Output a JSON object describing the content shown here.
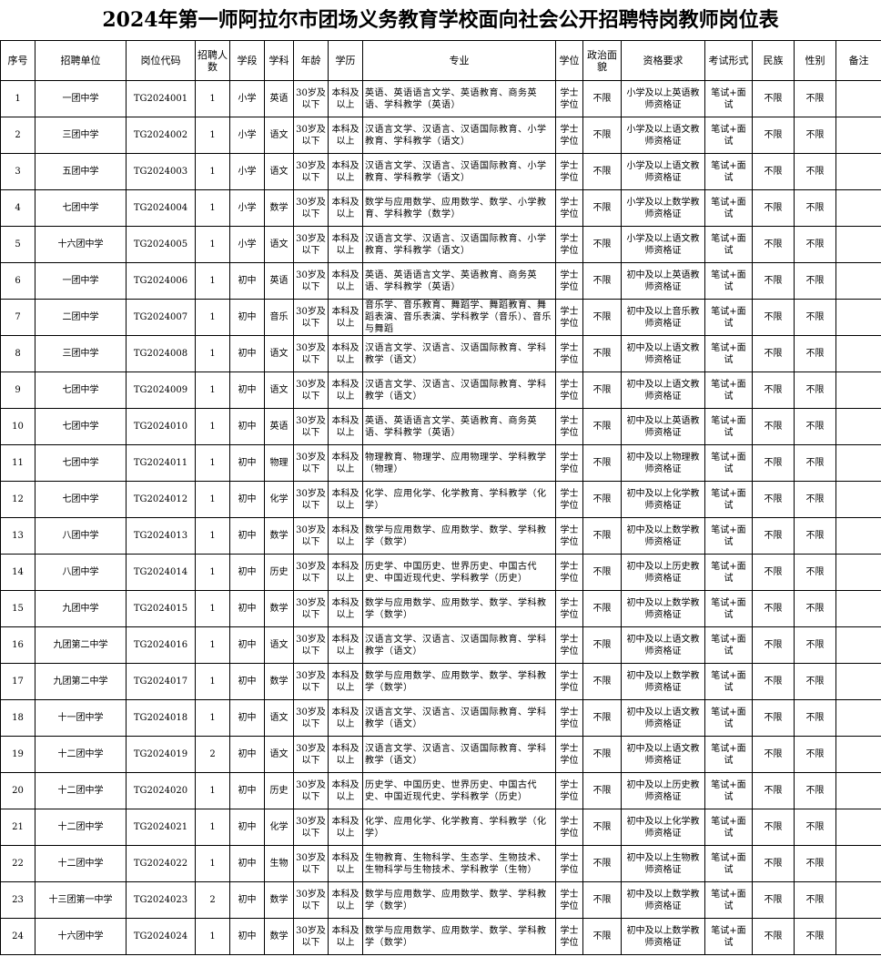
{
  "header": {
    "title": "2024年第一师阿拉尔市团场义务教育学校面向社会公开招聘特岗教师岗位表"
  },
  "table": {
    "columns": [
      "序号",
      "招聘单位",
      "岗位代码",
      "招聘人数",
      "学段",
      "学科",
      "年龄",
      "学历",
      "专业",
      "学位",
      "政治面貌",
      "资格要求",
      "考试形式",
      "民族",
      "性别",
      "备注"
    ],
    "rows": [
      [
        "1",
        "一团中学",
        "TG2024001",
        "1",
        "小学",
        "英语",
        "30岁及以下",
        "本科及以上",
        "英语、英语语言文学、英语教育、商务英语、学科教学（英语）",
        "学士学位",
        "不限",
        "小学及以上英语教师资格证",
        "笔试+面试",
        "不限",
        "不限"
      ],
      [
        "2",
        "三团中学",
        "TG2024002",
        "1",
        "小学",
        "语文",
        "30岁及以下",
        "本科及以上",
        "汉语言文学、汉语言、汉语国际教育、小学教育、学科教学（语文）",
        "学士学位",
        "不限",
        "小学及以上语文教师资格证",
        "笔试+面试",
        "不限",
        "不限"
      ],
      [
        "3",
        "五团中学",
        "TG2024003",
        "1",
        "小学",
        "语文",
        "30岁及以下",
        "本科及以上",
        "汉语言文学、汉语言、汉语国际教育、小学教育、学科教学（语文）",
        "学士学位",
        "不限",
        "小学及以上语文教师资格证",
        "笔试+面试",
        "不限",
        "不限"
      ],
      [
        "4",
        "七团中学",
        "TG2024004",
        "1",
        "小学",
        "数学",
        "30岁及以下",
        "本科及以上",
        "数学与应用数学、应用数学、数学、小学教育、学科教学（数学）",
        "学士学位",
        "不限",
        "小学及以上数学教师资格证",
        "笔试+面试",
        "不限",
        "不限"
      ],
      [
        "5",
        "十六团中学",
        "TG2024005",
        "1",
        "小学",
        "语文",
        "30岁及以下",
        "本科及以上",
        "汉语言文学、汉语言、汉语国际教育、小学教育、学科教学（语文）",
        "学士学位",
        "不限",
        "小学及以上语文教师资格证",
        "笔试+面试",
        "不限",
        "不限"
      ],
      [
        "6",
        "一团中学",
        "TG2024006",
        "1",
        "初中",
        "英语",
        "30岁及以下",
        "本科及以上",
        "英语、英语语言文学、英语教育、商务英语、学科教学（英语）",
        "学士学位",
        "不限",
        "初中及以上英语教师资格证",
        "笔试+面试",
        "不限",
        "不限"
      ],
      [
        "7",
        "二团中学",
        "TG2024007",
        "1",
        "初中",
        "音乐",
        "30岁及以下",
        "本科及以上",
        "音乐学、音乐教育、舞蹈学、舞蹈教育、舞蹈表演、音乐表演、学科教学（音乐）、音乐与舞蹈",
        "学士学位",
        "不限",
        "初中及以上音乐教师资格证",
        "笔试+面试",
        "不限",
        "不限"
      ],
      [
        "8",
        "三团中学",
        "TG2024008",
        "1",
        "初中",
        "语文",
        "30岁及以下",
        "本科及以上",
        "汉语言文学、汉语言、汉语国际教育、学科教学（语文）",
        "学士学位",
        "不限",
        "初中及以上语文教师资格证",
        "笔试+面试",
        "不限",
        "不限"
      ],
      [
        "9",
        "七团中学",
        "TG2024009",
        "1",
        "初中",
        "语文",
        "30岁及以下",
        "本科及以上",
        "汉语言文学、汉语言、汉语国际教育、学科教学（语文）",
        "学士学位",
        "不限",
        "初中及以上语文教师资格证",
        "笔试+面试",
        "不限",
        "不限"
      ],
      [
        "10",
        "七团中学",
        "TG2024010",
        "1",
        "初中",
        "英语",
        "30岁及以下",
        "本科及以上",
        "英语、英语语言文学、英语教育、商务英语、学科教学（英语）",
        "学士学位",
        "不限",
        "初中及以上英语教师资格证",
        "笔试+面试",
        "不限",
        "不限"
      ],
      [
        "11",
        "七团中学",
        "TG2024011",
        "1",
        "初中",
        "物理",
        "30岁及以下",
        "本科及以上",
        "物理教育、物理学、应用物理学、学科教学（物理）",
        "学士学位",
        "不限",
        "初中及以上物理教师资格证",
        "笔试+面试",
        "不限",
        "不限"
      ],
      [
        "12",
        "七团中学",
        "TG2024012",
        "1",
        "初中",
        "化学",
        "30岁及以下",
        "本科及以上",
        "化学、应用化学、化学教育、学科教学（化学）",
        "学士学位",
        "不限",
        "初中及以上化学教师资格证",
        "笔试+面试",
        "不限",
        "不限"
      ],
      [
        "13",
        "八团中学",
        "TG2024013",
        "1",
        "初中",
        "数学",
        "30岁及以下",
        "本科及以上",
        "数学与应用数学、应用数学、数学、学科教学（数学）",
        "学士学位",
        "不限",
        "初中及以上数学教师资格证",
        "笔试+面试",
        "不限",
        "不限"
      ],
      [
        "14",
        "八团中学",
        "TG2024014",
        "1",
        "初中",
        "历史",
        "30岁及以下",
        "本科及以上",
        "历史学、中国历史、世界历史、中国古代史、中国近现代史、学科教学（历史）",
        "学士学位",
        "不限",
        "初中及以上历史教师资格证",
        "笔试+面试",
        "不限",
        "不限"
      ],
      [
        "15",
        "九团中学",
        "TG2024015",
        "1",
        "初中",
        "数学",
        "30岁及以下",
        "本科及以上",
        "数学与应用数学、应用数学、数学、学科教学（数学）",
        "学士学位",
        "不限",
        "初中及以上数学教师资格证",
        "笔试+面试",
        "不限",
        "不限"
      ],
      [
        "16",
        "九团第二中学",
        "TG2024016",
        "1",
        "初中",
        "语文",
        "30岁及以下",
        "本科及以上",
        "汉语言文学、汉语言、汉语国际教育、学科教学（语文）",
        "学士学位",
        "不限",
        "初中及以上语文教师资格证",
        "笔试+面试",
        "不限",
        "不限"
      ],
      [
        "17",
        "九团第二中学",
        "TG2024017",
        "1",
        "初中",
        "数学",
        "30岁及以下",
        "本科及以上",
        "数学与应用数学、应用数学、数学、学科教学（数学）",
        "学士学位",
        "不限",
        "初中及以上数学教师资格证",
        "笔试+面试",
        "不限",
        "不限"
      ],
      [
        "18",
        "十一团中学",
        "TG2024018",
        "1",
        "初中",
        "语文",
        "30岁及以下",
        "本科及以上",
        "汉语言文学、汉语言、汉语国际教育、学科教学（语文）",
        "学士学位",
        "不限",
        "初中及以上语文教师资格证",
        "笔试+面试",
        "不限",
        "不限"
      ],
      [
        "19",
        "十二团中学",
        "TG2024019",
        "2",
        "初中",
        "语文",
        "30岁及以下",
        "本科及以上",
        "汉语言文学、汉语言、汉语国际教育、学科教学（语文）",
        "学士学位",
        "不限",
        "初中及以上语文教师资格证",
        "笔试+面试",
        "不限",
        "不限"
      ],
      [
        "20",
        "十二团中学",
        "TG2024020",
        "1",
        "初中",
        "历史",
        "30岁及以下",
        "本科及以上",
        "历史学、中国历史、世界历史、中国古代史、中国近现代史、学科教学（历史）",
        "学士学位",
        "不限",
        "初中及以上历史教师资格证",
        "笔试+面试",
        "不限",
        "不限"
      ],
      [
        "21",
        "十二团中学",
        "TG2024021",
        "1",
        "初中",
        "化学",
        "30岁及以下",
        "本科及以上",
        "化学、应用化学、化学教育、学科教学（化学）",
        "学士学位",
        "不限",
        "初中及以上化学教师资格证",
        "笔试+面试",
        "不限",
        "不限"
      ],
      [
        "22",
        "十二团中学",
        "TG2024022",
        "1",
        "初中",
        "生物",
        "30岁及以下",
        "本科及以上",
        "生物教育、生物科学、生态学、生物技术、生物科学与生物技术、学科教学（生物）",
        "学士学位",
        "不限",
        "初中及以上生物教师资格证",
        "笔试+面试",
        "不限",
        "不限"
      ],
      [
        "23",
        "十三团第一中学",
        "TG2024023",
        "2",
        "初中",
        "数学",
        "30岁及以下",
        "本科及以上",
        "数学与应用数学、应用数学、数学、学科教学（数学）",
        "学士学位",
        "不限",
        "初中及以上数学教师资格证",
        "笔试+面试",
        "不限",
        "不限"
      ],
      [
        "24",
        "十六团中学",
        "TG2024024",
        "1",
        "初中",
        "数学",
        "30岁及以下",
        "本科及以上",
        "数学与应用数学、应用数学、数学、学科教学（数学）",
        "学士学位",
        "不限",
        "初中及以上数学教师资格证",
        "笔试+面试",
        "不限",
        "不限"
      ]
    ]
  }
}
